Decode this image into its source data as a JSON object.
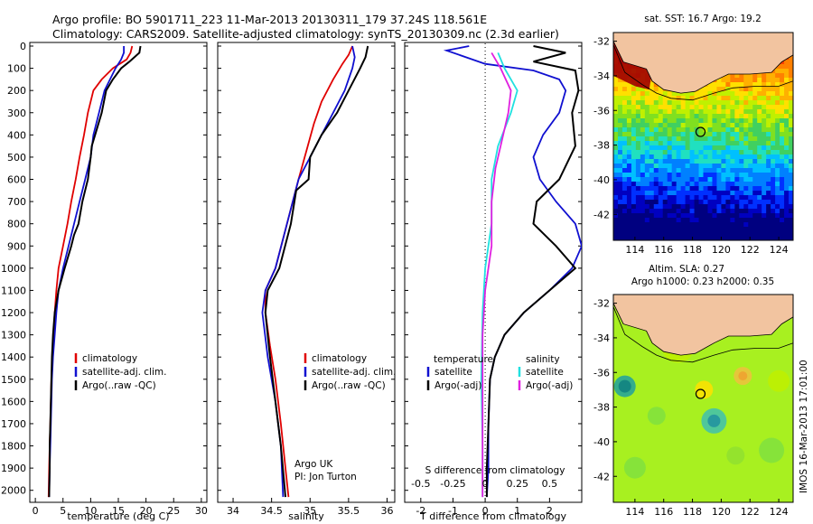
{
  "header": {
    "line1": "Argo profile: BO 5901711_223 11-Mar-2013 20130311_179 37.24S 118.561E",
    "line2": "Climatology: CARS2009. Satellite-adjusted climatology: synTS_20130309.nc (2.3d earlier)"
  },
  "colors": {
    "red": "#e00000",
    "blue": "#1010d0",
    "black": "#000000",
    "cyan": "#20e0e0",
    "magenta": "#e020e0",
    "land": "#f2c4a0"
  },
  "chart_data": [
    {
      "type": "line",
      "id": "temperature",
      "xlabel": "temperature (deg C)",
      "ylabel": "",
      "xlim": [
        -1,
        31
      ],
      "ylim": [
        2050,
        0
      ],
      "xticks": [
        0,
        5,
        10,
        15,
        20,
        25,
        30
      ],
      "yticks": [
        0,
        100,
        200,
        300,
        400,
        500,
        600,
        700,
        800,
        900,
        1000,
        1100,
        1200,
        1300,
        1400,
        1500,
        1600,
        1700,
        1800,
        1900,
        2000
      ],
      "legend": [
        "climatology",
        "satellite-adj. clim.",
        "Argo(..raw -QC)"
      ],
      "series": [
        {
          "name": "climatology",
          "color": "red",
          "points": [
            [
              17.5,
              0
            ],
            [
              17.2,
              30
            ],
            [
              16.5,
              60
            ],
            [
              14,
              100
            ],
            [
              12,
              150
            ],
            [
              10.5,
              200
            ],
            [
              9.5,
              300
            ],
            [
              8.8,
              400
            ],
            [
              8,
              500
            ],
            [
              7.3,
              600
            ],
            [
              6.5,
              700
            ],
            [
              5.8,
              800
            ],
            [
              5,
              900
            ],
            [
              4.2,
              1000
            ],
            [
              3.8,
              1100
            ],
            [
              3.5,
              1200
            ],
            [
              3.3,
              1300
            ],
            [
              3.1,
              1400
            ],
            [
              2.9,
              1500
            ],
            [
              2.8,
              1600
            ],
            [
              2.7,
              1700
            ],
            [
              2.6,
              1800
            ],
            [
              2.5,
              1900
            ],
            [
              2.4,
              2030
            ]
          ]
        },
        {
          "name": "satellite-adj. clim.",
          "color": "blue",
          "points": [
            [
              16,
              0
            ],
            [
              16,
              30
            ],
            [
              15.5,
              60
            ],
            [
              14.5,
              100
            ],
            [
              13.5,
              150
            ],
            [
              12.5,
              200
            ],
            [
              11.5,
              300
            ],
            [
              10.5,
              400
            ],
            [
              10,
              500
            ],
            [
              9,
              600
            ],
            [
              8,
              700
            ],
            [
              7,
              800
            ],
            [
              6,
              900
            ],
            [
              5,
              1000
            ],
            [
              4.2,
              1100
            ],
            [
              3.8,
              1200
            ],
            [
              3.5,
              1300
            ],
            [
              3.2,
              1400
            ],
            [
              3,
              1500
            ],
            [
              2.9,
              1600
            ],
            [
              2.8,
              1700
            ],
            [
              2.7,
              1800
            ],
            [
              2.6,
              1900
            ],
            [
              2.5,
              2030
            ]
          ]
        },
        {
          "name": "Argo(..raw -QC)",
          "color": "black",
          "points": [
            [
              19,
              0
            ],
            [
              18.8,
              30
            ],
            [
              17,
              70
            ],
            [
              15.5,
              100
            ],
            [
              14,
              150
            ],
            [
              12.8,
              200
            ],
            [
              12,
              300
            ],
            [
              10.8,
              400
            ],
            [
              10.2,
              450
            ],
            [
              10,
              500
            ],
            [
              9.5,
              600
            ],
            [
              8.5,
              700
            ],
            [
              7.8,
              800
            ],
            [
              7,
              850
            ],
            [
              6.5,
              900
            ],
            [
              5.3,
              1000
            ],
            [
              4.2,
              1100
            ],
            [
              3.5,
              1200
            ],
            [
              3.2,
              1300
            ],
            [
              3,
              1400
            ],
            [
              2.9,
              1500
            ],
            [
              2.8,
              1600
            ],
            [
              2.7,
              1700
            ],
            [
              2.6,
              1800
            ],
            [
              2.6,
              1900
            ],
            [
              2.5,
              2030
            ]
          ]
        }
      ]
    },
    {
      "type": "line",
      "id": "salinity",
      "xlabel": "salinity",
      "ylabel": "",
      "xlim": [
        33.8,
        36.1
      ],
      "ylim": [
        2050,
        0
      ],
      "xticks": [
        34,
        34.5,
        35,
        35.5,
        36
      ],
      "legend": [
        "climatology",
        "satellite-adj. clim.",
        "Argo(..raw -QC)"
      ],
      "annotations": [
        "Argo UK",
        "PI: Jon Turton"
      ],
      "series": [
        {
          "name": "climatology",
          "color": "red",
          "points": [
            [
              35.55,
              0
            ],
            [
              35.5,
              40
            ],
            [
              35.42,
              80
            ],
            [
              35.3,
              150
            ],
            [
              35.15,
              250
            ],
            [
              35.05,
              350
            ],
            [
              34.97,
              450
            ],
            [
              34.85,
              600
            ],
            [
              34.7,
              800
            ],
            [
              34.55,
              1000
            ],
            [
              34.42,
              1100
            ],
            [
              34.42,
              1200
            ],
            [
              34.48,
              1350
            ],
            [
              34.55,
              1500
            ],
            [
              34.62,
              1700
            ],
            [
              34.68,
              1900
            ],
            [
              34.72,
              2030
            ]
          ]
        },
        {
          "name": "satellite-adj. clim.",
          "color": "blue",
          "points": [
            [
              35.55,
              0
            ],
            [
              35.58,
              50
            ],
            [
              35.55,
              100
            ],
            [
              35.45,
              200
            ],
            [
              35.3,
              300
            ],
            [
              35.15,
              400
            ],
            [
              35.0,
              500
            ],
            [
              34.85,
              600
            ],
            [
              34.7,
              800
            ],
            [
              34.55,
              1000
            ],
            [
              34.42,
              1100
            ],
            [
              34.38,
              1200
            ],
            [
              34.45,
              1400
            ],
            [
              34.55,
              1600
            ],
            [
              34.62,
              1800
            ],
            [
              34.65,
              2030
            ]
          ]
        },
        {
          "name": "Argo(..raw -QC)",
          "color": "black",
          "points": [
            [
              35.75,
              0
            ],
            [
              35.72,
              50
            ],
            [
              35.65,
              100
            ],
            [
              35.5,
              200
            ],
            [
              35.35,
              300
            ],
            [
              35.15,
              400
            ],
            [
              35.0,
              500
            ],
            [
              34.98,
              600
            ],
            [
              34.82,
              650
            ],
            [
              34.75,
              800
            ],
            [
              34.6,
              1000
            ],
            [
              34.45,
              1100
            ],
            [
              34.42,
              1200
            ],
            [
              34.48,
              1400
            ],
            [
              34.55,
              1600
            ],
            [
              34.62,
              1800
            ],
            [
              34.68,
              2030
            ]
          ]
        }
      ]
    },
    {
      "type": "line",
      "id": "difference",
      "xlabel": "T difference from climatology",
      "xlabel_top": "S difference from climatology",
      "ylabel": "",
      "xlim": [
        -2.5,
        3
      ],
      "ylim": [
        2050,
        0
      ],
      "xticks": [
        -2,
        -1,
        0,
        1,
        2
      ],
      "xticks_s_labels": [
        "-0.5",
        "-0.25",
        "0",
        "0.25",
        "0.5"
      ],
      "legend_temperature": {
        "title": "temperature",
        "items": [
          "satellite",
          "Argo(-adj)"
        ]
      },
      "legend_salinity": {
        "title": "salinity",
        "items": [
          "satellite",
          "Argo(-adj)"
        ]
      },
      "series": [
        {
          "name": "temperature satellite",
          "color": "blue",
          "points": [
            [
              -0.5,
              0
            ],
            [
              -1.2,
              20
            ],
            [
              0,
              80
            ],
            [
              1.5,
              110
            ],
            [
              2.3,
              150
            ],
            [
              2.5,
              200
            ],
            [
              2.3,
              300
            ],
            [
              1.8,
              400
            ],
            [
              1.5,
              500
            ],
            [
              1.7,
              600
            ],
            [
              2.2,
              700
            ],
            [
              2.8,
              800
            ],
            [
              3,
              900
            ],
            [
              2.7,
              1000
            ],
            [
              2.0,
              1100
            ],
            [
              1.2,
              1200
            ],
            [
              0.6,
              1300
            ],
            [
              0.3,
              1400
            ],
            [
              0.15,
              1500
            ],
            [
              0.1,
              1700
            ],
            [
              0.1,
              1900
            ],
            [
              0.05,
              2030
            ]
          ]
        },
        {
          "name": "temperature Argo(-adj)",
          "color": "black",
          "points": [
            [
              1.5,
              0
            ],
            [
              2.5,
              30
            ],
            [
              1.5,
              70
            ],
            [
              2.8,
              110
            ],
            [
              2.9,
              200
            ],
            [
              2.7,
              300
            ],
            [
              2.8,
              450
            ],
            [
              2.3,
              600
            ],
            [
              1.6,
              700
            ],
            [
              1.5,
              800
            ],
            [
              2.2,
              900
            ],
            [
              2.8,
              1000
            ],
            [
              2.0,
              1100
            ],
            [
              1.2,
              1200
            ],
            [
              0.6,
              1300
            ],
            [
              0.3,
              1400
            ],
            [
              0.15,
              1500
            ],
            [
              0.1,
              1700
            ],
            [
              0.05,
              1900
            ],
            [
              0.05,
              2030
            ]
          ]
        },
        {
          "name": "salinity satellite",
          "color": "cyan",
          "points": [
            [
              0.1,
              30
            ],
            [
              0.15,
              100
            ],
            [
              0.25,
              200
            ],
            [
              0.2,
              300
            ],
            [
              0.1,
              450
            ],
            [
              0.05,
              600
            ],
            [
              0.05,
              800
            ],
            [
              0,
              1000
            ],
            [
              -0.02,
              1200
            ],
            [
              -0.03,
              1500
            ],
            [
              -0.02,
              1800
            ],
            [
              -0.02,
              2030
            ]
          ]
        },
        {
          "name": "salinity Argo(-adj)",
          "color": "magenta",
          "points": [
            [
              0.05,
              30
            ],
            [
              0.12,
              100
            ],
            [
              0.2,
              200
            ],
            [
              0.18,
              300
            ],
            [
              0.12,
              450
            ],
            [
              0.08,
              550
            ],
            [
              0.05,
              700
            ],
            [
              0.05,
              900
            ],
            [
              0,
              1100
            ],
            [
              -0.02,
              1300
            ],
            [
              -0.02,
              1600
            ],
            [
              -0.02,
              2030
            ]
          ]
        }
      ]
    },
    {
      "type": "heatmap",
      "id": "sst",
      "title": "sat. SST: 16.7 Argo: 19.2",
      "xticks": [
        114,
        116,
        118,
        120,
        122,
        124
      ],
      "yticks": [
        -32,
        -34,
        -36,
        -38,
        -40,
        -42
      ],
      "xlim": [
        112.5,
        125
      ],
      "ylim": [
        -43.5,
        -31.5
      ],
      "argo_position": [
        118.56,
        -37.24
      ]
    },
    {
      "type": "heatmap",
      "id": "sla",
      "title_line1": "Altim. SLA: 0.27",
      "title_line2": "Argo h1000: 0.23 h2000: 0.35",
      "xticks": [
        114,
        116,
        118,
        120,
        122,
        124
      ],
      "yticks": [
        -32,
        -34,
        -36,
        -38,
        -40,
        -42
      ],
      "xlim": [
        112.5,
        125
      ],
      "ylim": [
        -43.5,
        -31.5
      ],
      "argo_position": [
        118.56,
        -37.24
      ]
    }
  ],
  "stamp": "IMOS 16-Mar-2013 17:01:00"
}
